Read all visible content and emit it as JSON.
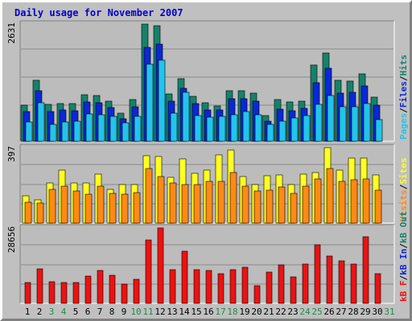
{
  "title": "Daily usage for November 2007",
  "colors": {
    "background": "#c0c0c0",
    "plot_background": "#bcbcbc",
    "hits": "#16826a",
    "files": "#0a28d4",
    "pages": "#22c4ec",
    "visits": "#ffff22",
    "sites": "#ff8a14",
    "kbytes": "#ee1111",
    "title": "#0000cc",
    "weekend_label": "#238a4a",
    "weekday_label": "#000000"
  },
  "chart_data": [
    {
      "type": "bar",
      "name": "hits-files-pages",
      "categories": [
        "1",
        "2",
        "3",
        "4",
        "5",
        "6",
        "7",
        "8",
        "9",
        "10",
        "11",
        "12",
        "13",
        "14",
        "15",
        "16",
        "17",
        "18",
        "19",
        "20",
        "21",
        "22",
        "23",
        "24",
        "25",
        "26",
        "27",
        "28",
        "29",
        "30",
        "31"
      ],
      "series": [
        {
          "name": "Hits",
          "values": [
            815,
            1363,
            830,
            838,
            852,
            1041,
            1033,
            905,
            622,
            939,
            2631,
            2591,
            1065,
            1401,
            1001,
            871,
            800,
            1142,
            1143,
            1073,
            571,
            930,
            876,
            910,
            1713,
            1981,
            1374,
            1348,
            1514,
            991,
            null
          ]
        },
        {
          "name": "Files",
          "values": [
            667,
            1134,
            660,
            706,
            692,
            892,
            872,
            754,
            509,
            776,
            2113,
            2172,
            898,
            1186,
            838,
            700,
            706,
            954,
            962,
            903,
            445,
            713,
            688,
            732,
            1317,
            1642,
            1088,
            1096,
            1238,
            813,
            null
          ]
        },
        {
          "name": "Pages",
          "values": [
            441,
            861,
            377,
            437,
            442,
            616,
            594,
            563,
            408,
            566,
            1732,
            1829,
            636,
            1100,
            576,
            546,
            552,
            587,
            670,
            594,
            380,
            443,
            523,
            583,
            831,
            1033,
            776,
            769,
            855,
            484,
            null
          ]
        }
      ],
      "legend": [
        "Pages",
        "Files",
        "Hits"
      ],
      "ylabel_max": "2631"
    },
    {
      "type": "bar",
      "name": "visits-sites",
      "categories": [
        "1",
        "2",
        "3",
        "4",
        "5",
        "6",
        "7",
        "8",
        "9",
        "10",
        "11",
        "12",
        "13",
        "14",
        "15",
        "16",
        "17",
        "18",
        "19",
        "20",
        "21",
        "22",
        "23",
        "24",
        "25",
        "26",
        "27",
        "28",
        "29",
        "30",
        "31"
      ],
      "series": [
        {
          "name": "Visits",
          "values": [
            137,
            115,
            200,
            265,
            200,
            201,
            244,
            167,
            192,
            190,
            334,
            332,
            228,
            321,
            248,
            263,
            340,
            365,
            233,
            190,
            235,
            240,
            192,
            245,
            250,
            375,
            263,
            324,
            322,
            238,
            null
          ]
        },
        {
          "name": "Sites",
          "values": [
            103,
            98,
            167,
            183,
            159,
            145,
            183,
            147,
            143,
            150,
            271,
            230,
            200,
            192,
            191,
            207,
            206,
            250,
            184,
            161,
            165,
            179,
            149,
            182,
            221,
            270,
            208,
            215,
            220,
            163,
            null
          ]
        }
      ],
      "legend": [
        "Visits",
        "Sites"
      ],
      "ylabel_max": "397"
    },
    {
      "type": "bar",
      "name": "kbytes",
      "categories": [
        "1",
        "2",
        "3",
        "4",
        "5",
        "6",
        "7",
        "8",
        "9",
        "10",
        "11",
        "12",
        "13",
        "14",
        "15",
        "16",
        "17",
        "18",
        "19",
        "20",
        "21",
        "22",
        "23",
        "24",
        "25",
        "26",
        "27",
        "28",
        "29",
        "30",
        "31"
      ],
      "series": [
        {
          "name": "kB F",
          "values": [
            7047,
            11525,
            7138,
            6870,
            6834,
            9139,
            11004,
            9222,
            6534,
            8050,
            20963,
            25101,
            11163,
            17244,
            11174,
            10895,
            9790,
            11231,
            12111,
            5943,
            10290,
            12945,
            8785,
            13206,
            19595,
            15817,
            14068,
            13126,
            22089,
            9780,
            null
          ]
        }
      ],
      "legend": [
        "kB F",
        "kB In",
        "kB Out"
      ],
      "ylabel_max": "28656"
    }
  ],
  "x_axis": {
    "labels": [
      "1",
      "2",
      "3",
      "4",
      "5",
      "6",
      "7",
      "8",
      "9",
      "10",
      "11",
      "12",
      "13",
      "14",
      "15",
      "16",
      "17",
      "18",
      "19",
      "20",
      "21",
      "22",
      "23",
      "24",
      "25",
      "26",
      "27",
      "28",
      "29",
      "30",
      "31"
    ],
    "weekend_days": [
      "3",
      "4",
      "10",
      "11",
      "17",
      "18",
      "24",
      "25",
      "31"
    ]
  }
}
